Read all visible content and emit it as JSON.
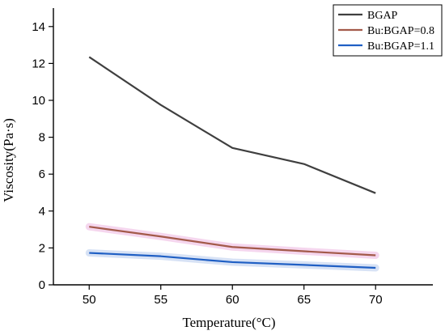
{
  "chart_data": {
    "type": "line",
    "xlabel": "Temperature(°C)",
    "ylabel": "Viscosity(Pa·s)",
    "x": [
      50,
      55,
      60,
      65,
      70
    ],
    "xlim": [
      47.5,
      74
    ],
    "ylim": [
      0,
      15
    ],
    "xticks": [
      "50",
      "55",
      "60",
      "65",
      "70"
    ],
    "yticks": [
      "0",
      "2",
      "4",
      "6",
      "8",
      "10",
      "12",
      "14"
    ],
    "grid": false,
    "legend_position": "top-right",
    "series": [
      {
        "name": "BGAP",
        "color": "#3f3f3f",
        "values": [
          12.35,
          9.75,
          7.42,
          6.55,
          4.97
        ]
      },
      {
        "name": "Bu:BGAP=0.8",
        "color": "#a35a4a",
        "halo": "#f2c8e8",
        "values": [
          3.15,
          2.62,
          2.05,
          1.82,
          1.6
        ]
      },
      {
        "name": "Bu:BGAP=1.1",
        "color": "#1f5fc4",
        "halo": "#c9d8f2",
        "values": [
          1.73,
          1.55,
          1.23,
          1.08,
          0.92
        ]
      }
    ]
  }
}
